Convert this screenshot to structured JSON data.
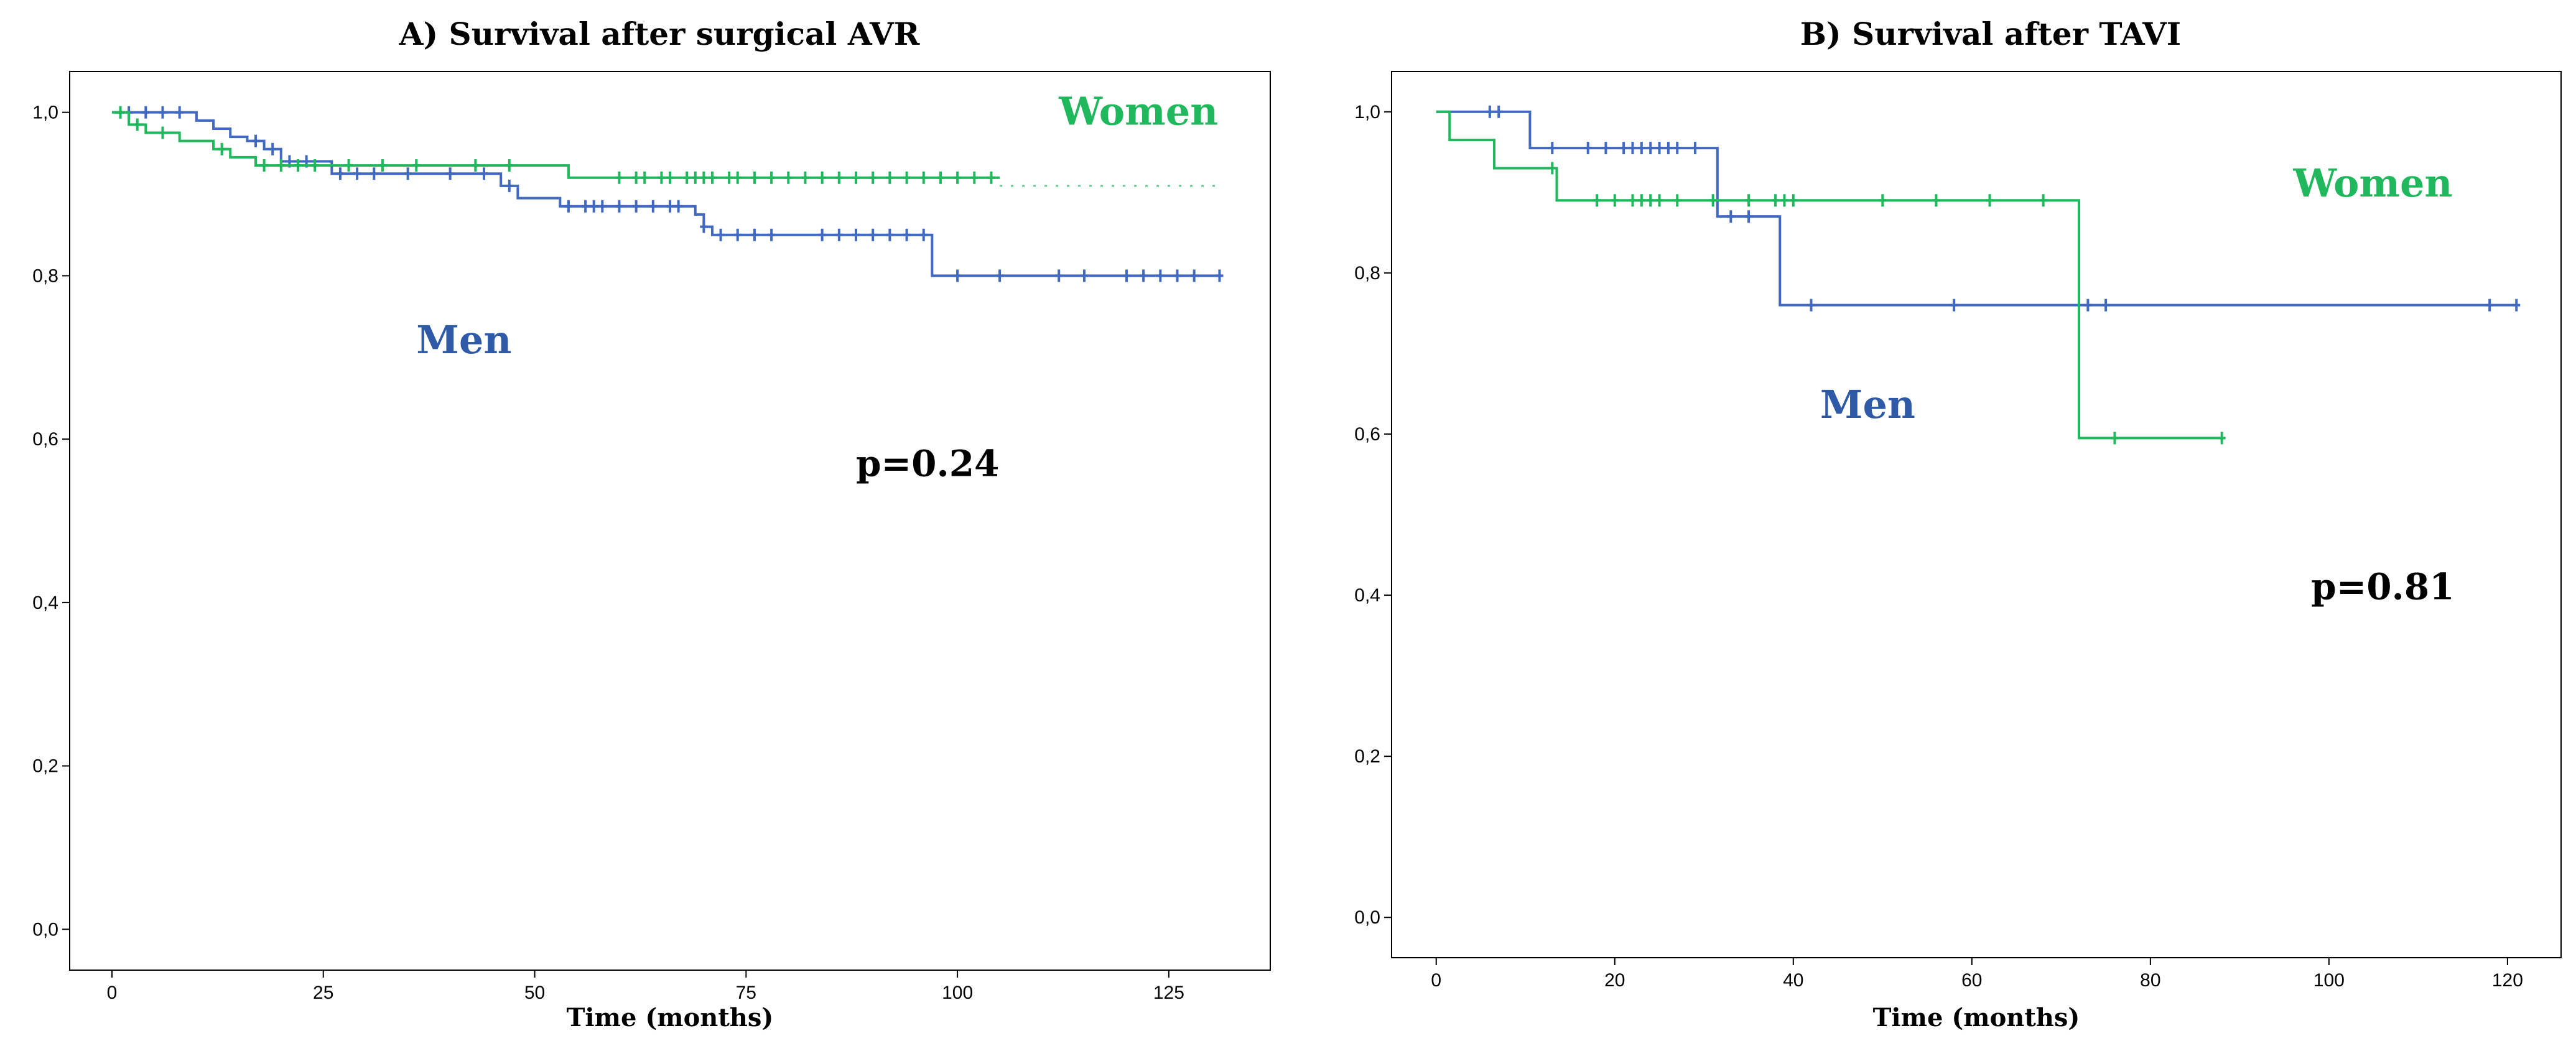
{
  "chart_data": [
    {
      "type": "line",
      "subtype": "kaplan-meier",
      "title": "A) Survival after surgical AVR",
      "xlabel": "Time (months)",
      "ylabel": "",
      "xlim": [
        -5,
        137
      ],
      "ylim": [
        -0.05,
        1.05
      ],
      "xticks": [
        0,
        25,
        50,
        75,
        100,
        125
      ],
      "xtick_labels": [
        "0",
        "25",
        "50",
        "75",
        "100",
        "125"
      ],
      "yticks": [
        0.0,
        0.2,
        0.4,
        0.6,
        0.8,
        1.0
      ],
      "ytick_labels": [
        "0,0",
        "0,2",
        "0,4",
        "0,6",
        "0,8",
        "1,0"
      ],
      "grid": false,
      "series": [
        {
          "name": "Men",
          "color": "#4169c1",
          "steps": [
            [
              0,
              1.0
            ],
            [
              10,
              0.99
            ],
            [
              12,
              0.98
            ],
            [
              14,
              0.97
            ],
            [
              16,
              0.965
            ],
            [
              18,
              0.955
            ],
            [
              20,
              0.94
            ],
            [
              26,
              0.925
            ],
            [
              46,
              0.91
            ],
            [
              48,
              0.895
            ],
            [
              53,
              0.885
            ],
            [
              69,
              0.875
            ],
            [
              70,
              0.86
            ],
            [
              71,
              0.85
            ],
            [
              97,
              0.8
            ],
            [
              131,
              0.8
            ]
          ],
          "censored_times": [
            1,
            2,
            4,
            6,
            8,
            17,
            19,
            21,
            23,
            27,
            29,
            31,
            35,
            40,
            44,
            47,
            54,
            56,
            57,
            58,
            60,
            62,
            64,
            66,
            67,
            70,
            72,
            74,
            76,
            78,
            84,
            86,
            88,
            90,
            92,
            94,
            96,
            100,
            105,
            112,
            115,
            120,
            122,
            124,
            126,
            128,
            131
          ]
        },
        {
          "name": "Women",
          "color": "#20b85c",
          "steps": [
            [
              0,
              1.0
            ],
            [
              2,
              0.985
            ],
            [
              4,
              0.975
            ],
            [
              8,
              0.965
            ],
            [
              12,
              0.955
            ],
            [
              14,
              0.945
            ],
            [
              17,
              0.935
            ],
            [
              54,
              0.92
            ],
            [
              105,
              0.92
            ]
          ],
          "dotted_extension": [
            [
              105,
              0.91
            ],
            [
              131,
              0.91
            ]
          ],
          "censored_times": [
            1,
            3,
            6,
            13,
            18,
            20,
            22,
            24,
            28,
            32,
            36,
            43,
            47,
            60,
            62,
            63,
            65,
            66,
            68,
            69,
            70,
            71,
            73,
            74,
            76,
            78,
            80,
            82,
            84,
            86,
            88,
            90,
            92,
            94,
            96,
            98,
            100,
            102,
            104
          ]
        }
      ],
      "annotations": [
        {
          "text": "Women",
          "x": 112,
          "y": 0.985,
          "color": "#20b85c"
        },
        {
          "text": "Men",
          "x": 36,
          "y": 0.705,
          "color": "#2e5aa8"
        },
        {
          "text": "p=0.24",
          "x": 88,
          "y": 0.555,
          "color": "#000000"
        }
      ]
    },
    {
      "type": "line",
      "subtype": "kaplan-meier",
      "title": "B) Survival after TAVI",
      "xlabel": "Time (months)",
      "ylabel": "",
      "xlim": [
        -5,
        126
      ],
      "ylim": [
        -0.05,
        1.05
      ],
      "xticks": [
        0,
        20,
        40,
        60,
        80,
        100,
        120
      ],
      "xtick_labels": [
        "0",
        "20",
        "40",
        "60",
        "80",
        "100",
        "120"
      ],
      "yticks": [
        0.0,
        0.2,
        0.4,
        0.6,
        0.8,
        1.0
      ],
      "ytick_labels": [
        "0,0",
        "0,2",
        "0,4",
        "0,6",
        "0,8",
        "1,0"
      ],
      "grid": false,
      "series": [
        {
          "name": "Men",
          "color": "#4169c1",
          "steps": [
            [
              0,
              1.0
            ],
            [
              10.5,
              0.955
            ],
            [
              31.5,
              0.87
            ],
            [
              38.5,
              0.76
            ],
            [
              121,
              0.76
            ]
          ],
          "censored_times": [
            6,
            7,
            13,
            17,
            19,
            21,
            22,
            23,
            24,
            25,
            26,
            27,
            29,
            33,
            35,
            42,
            58,
            73,
            75,
            118,
            121
          ]
        },
        {
          "name": "Women",
          "color": "#20b85c",
          "steps": [
            [
              0,
              1.0
            ],
            [
              1.5,
              0.965
            ],
            [
              6.5,
              0.93
            ],
            [
              13.5,
              0.89
            ],
            [
              72,
              0.595
            ],
            [
              88,
              0.595
            ]
          ],
          "censored_times": [
            13,
            18,
            20,
            22,
            23,
            24,
            25,
            27,
            31,
            35,
            38,
            39,
            40,
            50,
            56,
            62,
            68,
            76,
            88
          ]
        }
      ],
      "annotations": [
        {
          "text": "Women",
          "x": 96,
          "y": 0.895,
          "color": "#20b85c"
        },
        {
          "text": "Men",
          "x": 43,
          "y": 0.62,
          "color": "#2e5aa8"
        },
        {
          "text": "p=0.81",
          "x": 98,
          "y": 0.395,
          "color": "#000000"
        }
      ]
    }
  ]
}
